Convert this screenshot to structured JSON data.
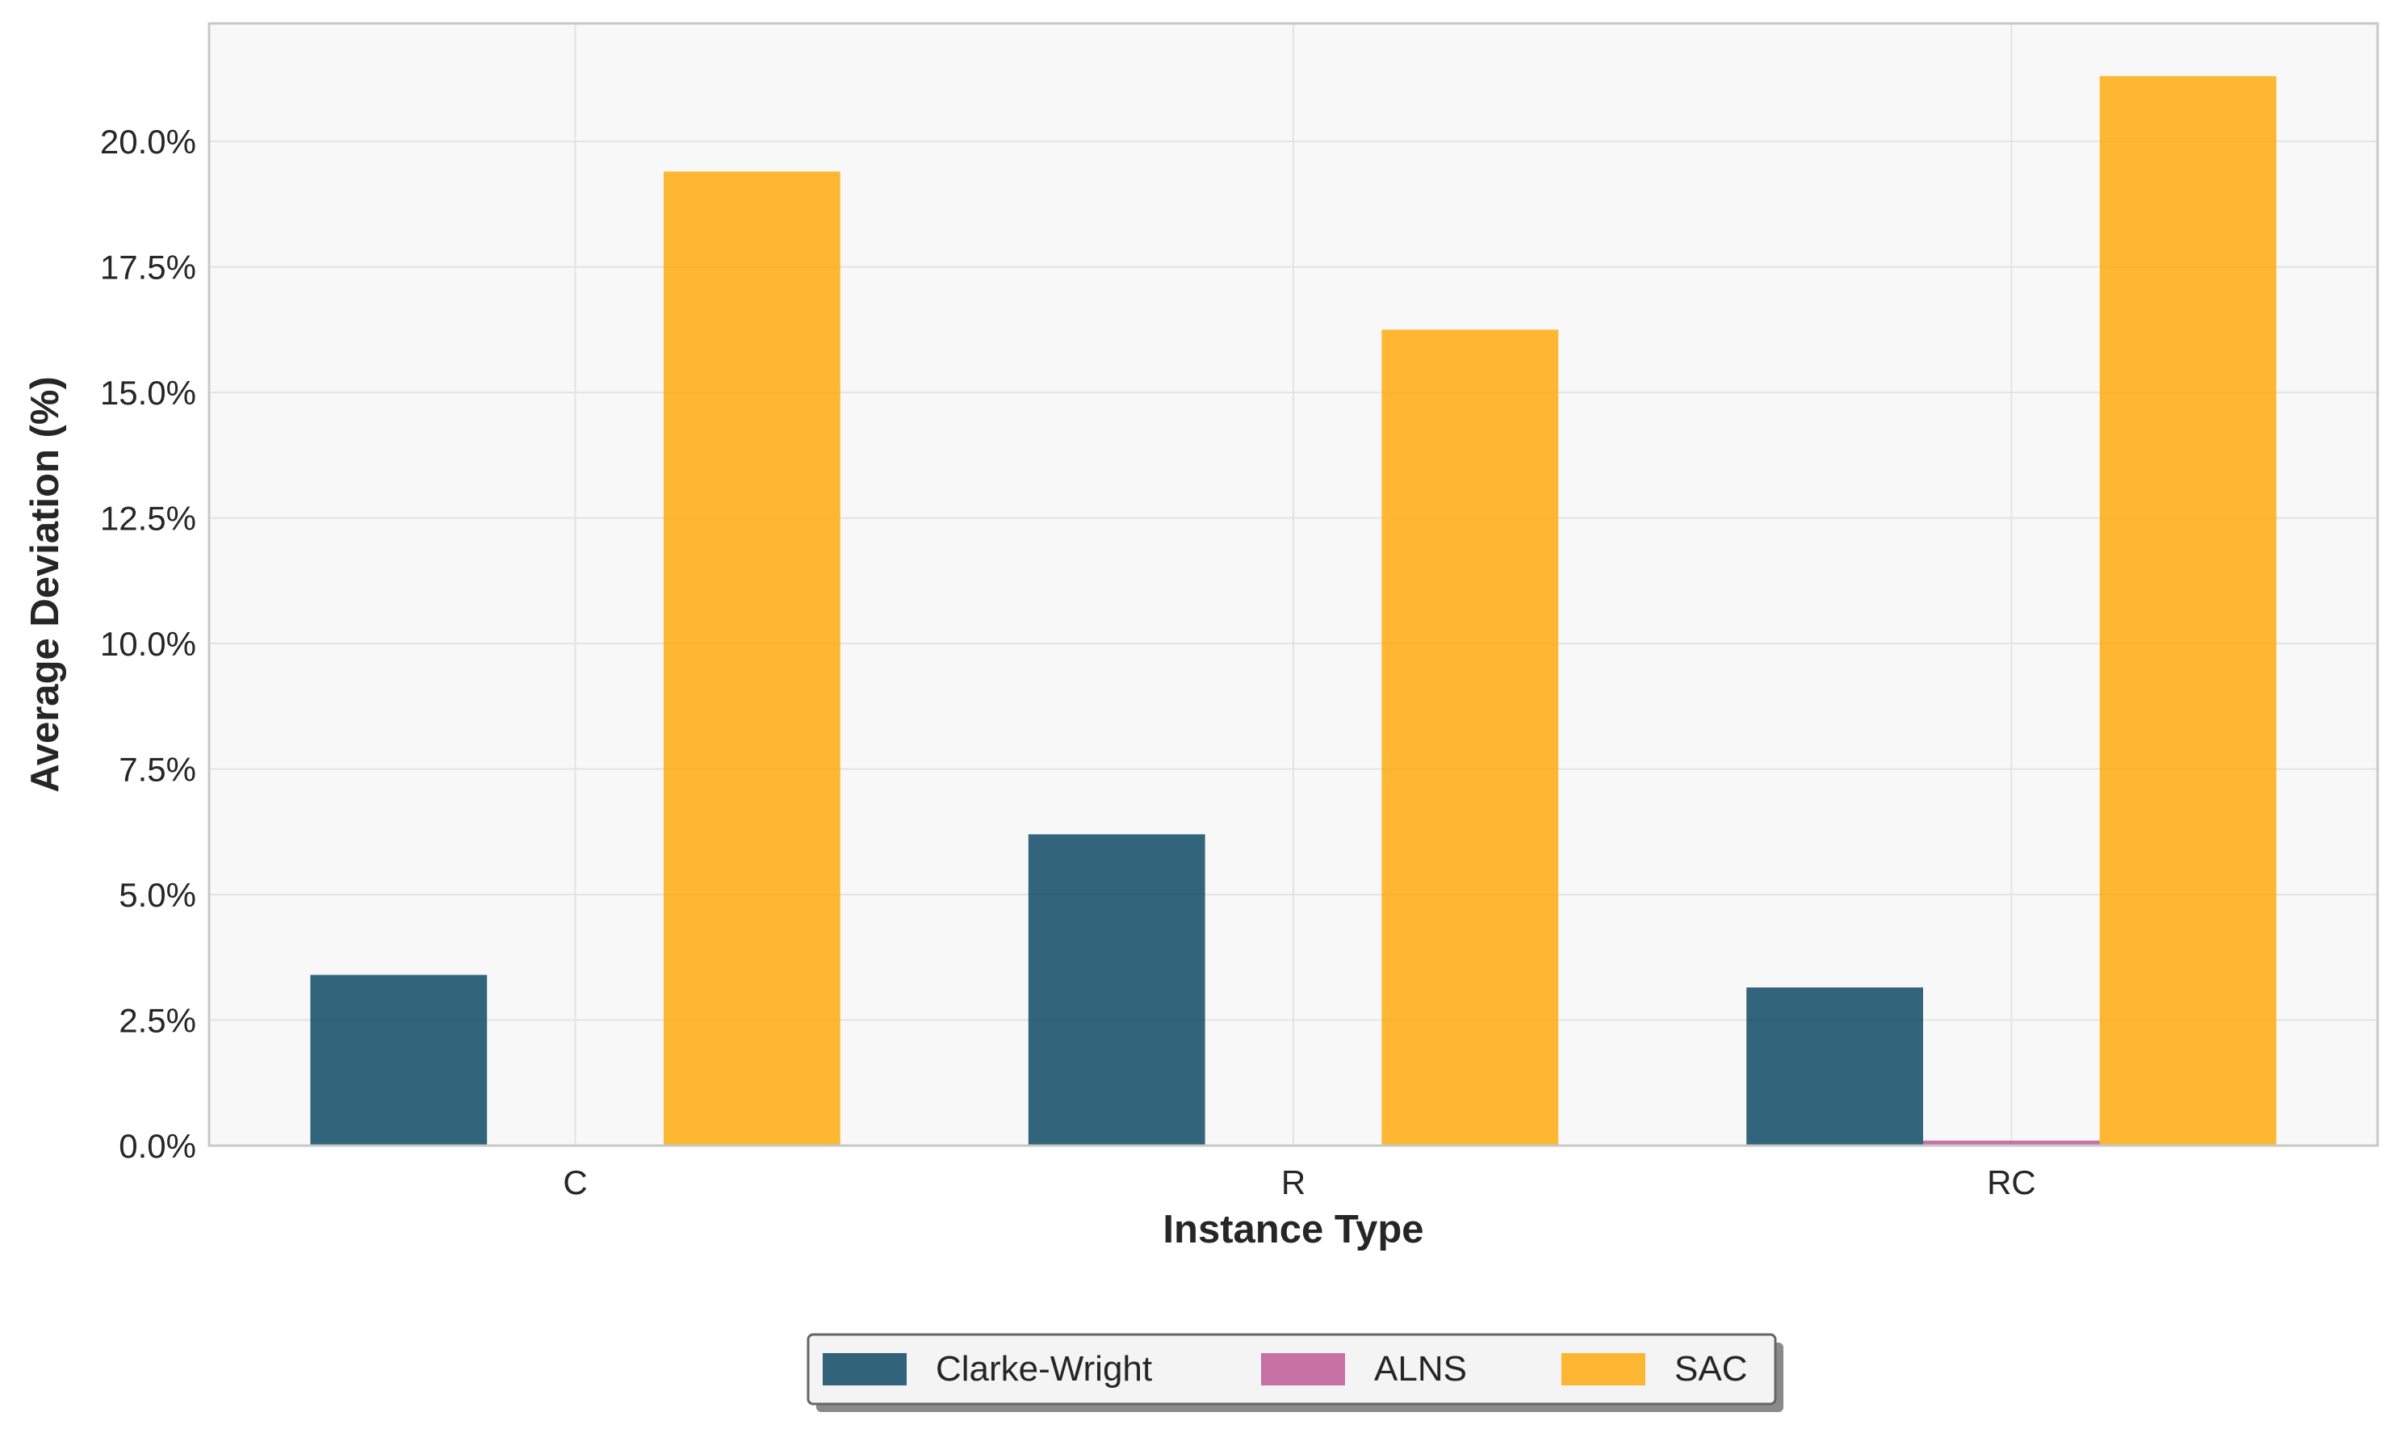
{
  "chart_data": {
    "type": "bar",
    "title": "",
    "xlabel": "Instance Type",
    "ylabel": "Average Deviation (%)",
    "categories": [
      "C",
      "R",
      "RC"
    ],
    "series": [
      {
        "name": "Clarke-Wright",
        "color": "#003f5c",
        "values": [
          3.4,
          6.2,
          3.15
        ]
      },
      {
        "name": "ALNS",
        "color": "#bc5090",
        "values": [
          0.0,
          0.0,
          0.1
        ]
      },
      {
        "name": "SAC",
        "color": "#ffa600",
        "values": [
          19.4,
          16.25,
          21.3
        ]
      }
    ],
    "ylim": [
      0,
      22.35
    ],
    "yticks": [
      0,
      2.5,
      5,
      7.5,
      10,
      12.5,
      15,
      17.5,
      20
    ],
    "ytick_labels": [
      "0.0%",
      "2.5%",
      "5.0%",
      "7.5%",
      "10.0%",
      "12.5%",
      "15.0%",
      "17.5%",
      "20.0%"
    ],
    "grid": true,
    "legend_position": "bottom-center",
    "plot_background": "#f8f8f8",
    "bar_opacity": 0.8
  }
}
